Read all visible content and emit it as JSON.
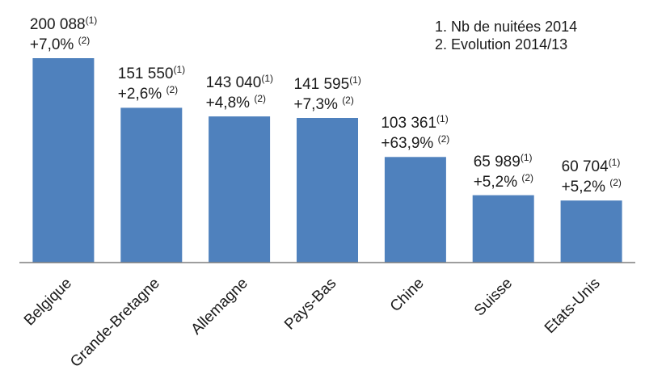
{
  "legend": {
    "note1": "1. Nb de nuitées 2014",
    "note2": "2. Evolution 2014/13"
  },
  "chart_data": {
    "type": "bar",
    "title": "",
    "xlabel": "",
    "ylabel": "",
    "ylim": [
      0,
      205000
    ],
    "grid": false,
    "bar_color": "#4f81bd",
    "categories": [
      "Belgique",
      "Grande-Bretagne",
      "Allemagne",
      "Pays-Bas",
      "Chine",
      "Suisse",
      "Etats-Unis"
    ],
    "values": [
      200088,
      151550,
      143040,
      141595,
      103361,
      65989,
      60704
    ],
    "value_labels": [
      "200 088",
      "151 550",
      "143 040",
      "141 595",
      "103 361",
      "65 989",
      "60 704"
    ],
    "value_note": "(1)",
    "evolution_labels": [
      "+7,0%",
      "+2,6%",
      "+4,8%",
      "+7,3%",
      "+63,9%",
      "+5,2%",
      "+5,2%"
    ],
    "evolution_note": "(2)"
  }
}
